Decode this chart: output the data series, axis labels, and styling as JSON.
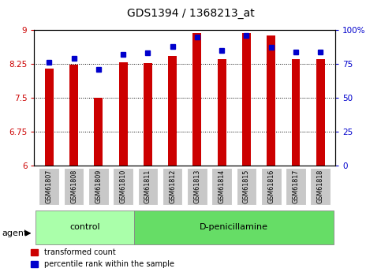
{
  "title": "GDS1394 / 1368213_at",
  "categories": [
    "GSM61807",
    "GSM61808",
    "GSM61809",
    "GSM61810",
    "GSM61811",
    "GSM61812",
    "GSM61813",
    "GSM61814",
    "GSM61815",
    "GSM61816",
    "GSM61817",
    "GSM61818"
  ],
  "red_values": [
    8.15,
    8.23,
    7.5,
    8.28,
    8.27,
    8.43,
    8.93,
    8.35,
    8.93,
    8.88,
    8.35,
    8.35
  ],
  "blue_values": [
    76,
    79,
    71,
    82,
    83,
    88,
    95,
    85,
    96,
    87,
    84,
    84
  ],
  "ymin": 6.0,
  "ymax": 9.0,
  "yticks": [
    6,
    6.75,
    7.5,
    8.25,
    9
  ],
  "ytick_labels": [
    "6",
    "6.75",
    "7.5",
    "8.25",
    "9"
  ],
  "y2ticks": [
    0,
    25,
    50,
    75,
    100
  ],
  "y2tick_labels": [
    "0",
    "25",
    "50",
    "75",
    "100%"
  ],
  "red_color": "#cc0000",
  "blue_color": "#0000cc",
  "bar_width": 0.35,
  "control_count": 4,
  "control_label": "control",
  "treatment_label": "D-penicillamine",
  "agent_label": "agent",
  "legend_red": "transformed count",
  "legend_blue": "percentile rank within the sample",
  "group_box_color": "#c8c8c8",
  "control_fill": "#aaffaa",
  "treatment_fill": "#66dd66"
}
